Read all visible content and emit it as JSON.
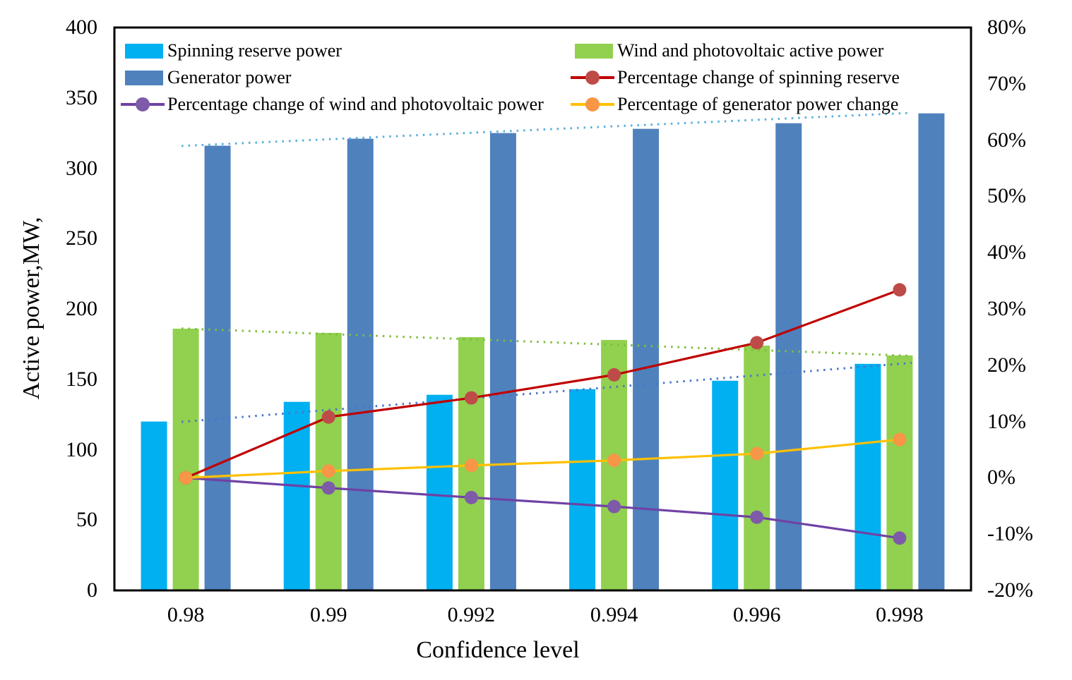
{
  "chart_data": {
    "type": "bar+line",
    "title": "",
    "categories": [
      "0.98",
      "0.99",
      "0.992",
      "0.994",
      "0.996",
      "0.998"
    ],
    "x_axis": {
      "label": "Confidence level"
    },
    "left_axis": {
      "label": "Active power,MW,",
      "min": 0,
      "max": 400,
      "tick_values": [
        400,
        350,
        300,
        250,
        200,
        150,
        100,
        50,
        0
      ],
      "tick_labels": [
        "400",
        "350",
        "300",
        "250",
        "200",
        "150",
        "100",
        "50",
        "0"
      ]
    },
    "right_axis": {
      "min": -20,
      "max": 80,
      "tick_values": [
        80,
        70,
        60,
        50,
        40,
        30,
        20,
        10,
        0,
        -10,
        -20
      ],
      "tick_labels": [
        "80%",
        "70%",
        "60%",
        "50%",
        "40%",
        "30%",
        "20%",
        "10%",
        "0%",
        "-10%",
        "-20%"
      ]
    },
    "bar_series": [
      {
        "name": "Spinning reserve power",
        "color": "#00B0F0",
        "values_mw": [
          120,
          134,
          139,
          143,
          149,
          161
        ]
      },
      {
        "name": "Wind and photovoltaic active power",
        "color": "#92D050",
        "values_mw": [
          186,
          183,
          180,
          178,
          174,
          167
        ]
      },
      {
        "name": "Generator power",
        "color": "#4F81BD",
        "values_mw": [
          316,
          321,
          325,
          328,
          332,
          339
        ]
      }
    ],
    "line_series": [
      {
        "name": "Percentage change of spinning reserve",
        "line_color": "#C00000",
        "marker_color": "#BE4B48",
        "values_pct": [
          0,
          10.8,
          14.2,
          18.3,
          24.0,
          33.4
        ]
      },
      {
        "name": "Percentage change of wind and photovoltaic power",
        "line_color": "#6F42A5",
        "marker_color": "#7E5BA8",
        "values_pct": [
          0,
          -1.8,
          -3.5,
          -5.1,
          -7.0,
          -10.7
        ]
      },
      {
        "name": "Percentage of generator power change",
        "line_color": "#FFC000",
        "marker_color": "#F79646",
        "values_pct": [
          0,
          1.2,
          2.2,
          3.1,
          4.3,
          6.8
        ]
      }
    ],
    "trendlines": [
      {
        "series": "Spinning reserve power",
        "color": "#4877C8",
        "style": "dotted"
      },
      {
        "series": "Wind and photovoltaic active power",
        "color": "#7DBE3C",
        "style": "dotted"
      },
      {
        "series": "Generator power",
        "color": "#58AEDC",
        "style": "dotted"
      }
    ],
    "legend": {
      "position": "inside-top",
      "columns": [
        [
          {
            "swatch": "bar",
            "label": "Spinning reserve power"
          },
          {
            "swatch": "bar",
            "label": "Generator power"
          },
          {
            "swatch": "line",
            "label": "Percentage change of wind and photovoltaic power"
          }
        ],
        [
          {
            "swatch": "bar",
            "label": "Wind and photovoltaic active power"
          },
          {
            "swatch": "line",
            "label": "Percentage change of spinning reserve"
          },
          {
            "swatch": "line",
            "label": "Percentage of generator power change"
          }
        ]
      ]
    },
    "layout_hints": {
      "grid": "off",
      "plot_border": "black box",
      "background": "#FFFFFF"
    }
  }
}
